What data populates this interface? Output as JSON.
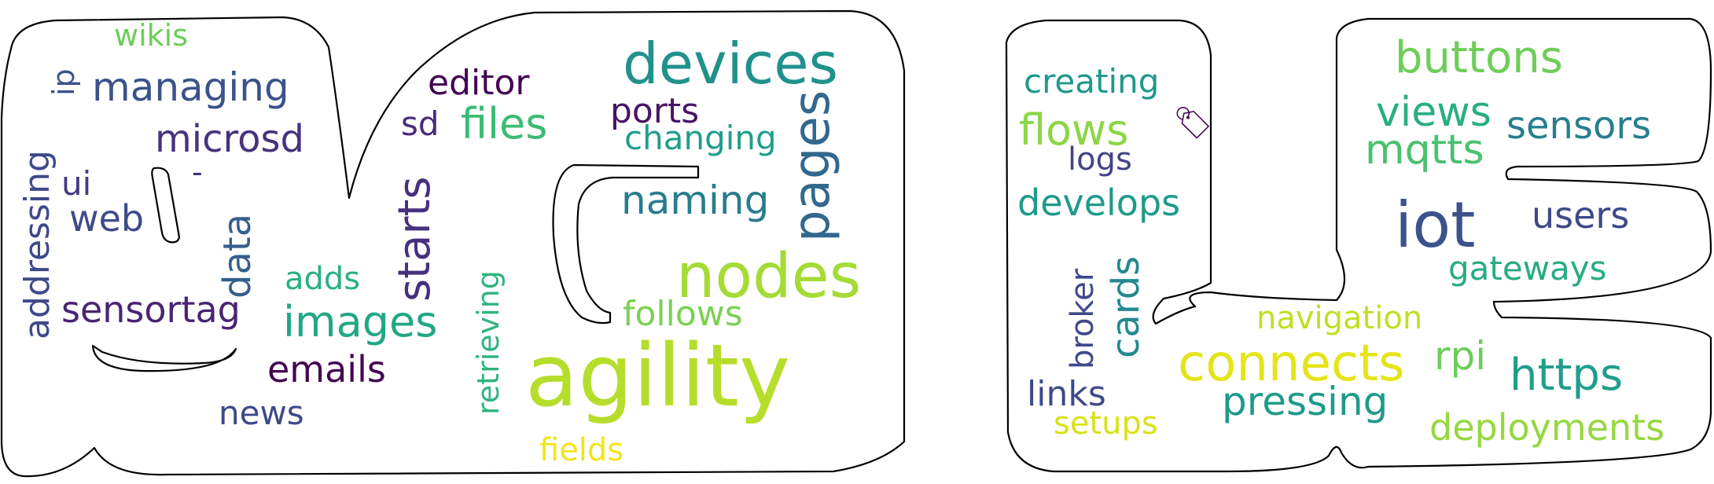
{
  "words": [
    {
      "text": "wikis",
      "color": "#6ccd5a"
    },
    {
      "text": "ip",
      "color": "#3b528b"
    },
    {
      "text": "managing",
      "color": "#3b528b"
    },
    {
      "text": "addressing",
      "color": "#3e4989"
    },
    {
      "text": "microsd",
      "color": "#46327e"
    },
    {
      "text": "ui",
      "color": "#443983"
    },
    {
      "text": "-",
      "color": "#46327e"
    },
    {
      "text": "web",
      "color": "#3e4a89"
    },
    {
      "text": "data",
      "color": "#355f8d"
    },
    {
      "text": "adds",
      "color": "#2ab07f"
    },
    {
      "text": "sensortag",
      "color": "#482475"
    },
    {
      "text": "images",
      "color": "#22a785"
    },
    {
      "text": "emails",
      "color": "#440154"
    },
    {
      "text": "news",
      "color": "#3e4989"
    },
    {
      "text": "editor",
      "color": "#440154"
    },
    {
      "text": "sd",
      "color": "#472c7a"
    },
    {
      "text": "files",
      "color": "#3bbb75"
    },
    {
      "text": "starts",
      "color": "#46307e"
    },
    {
      "text": "retrieving",
      "color": "#2fb47c"
    },
    {
      "text": "devices",
      "color": "#21918c"
    },
    {
      "text": "ports",
      "color": "#481467"
    },
    {
      "text": "changing",
      "color": "#1f9e89"
    },
    {
      "text": "pages",
      "color": "#31688e"
    },
    {
      "text": "naming",
      "color": "#287c8e"
    },
    {
      "text": "nodes",
      "color": "#a5db36"
    },
    {
      "text": "follows",
      "color": "#7ad151"
    },
    {
      "text": "agility",
      "color": "#b5de2b"
    },
    {
      "text": "fields",
      "color": "#f1e51d"
    },
    {
      "text": "creating",
      "color": "#1f988b"
    },
    {
      "text": "flows",
      "color": "#8bd646"
    },
    {
      "text": "🏷",
      "color": "#440154"
    },
    {
      "text": "logs",
      "color": "#414487"
    },
    {
      "text": "develops",
      "color": "#1f9a8a"
    },
    {
      "text": "cards",
      "color": "#23898e"
    },
    {
      "text": "broker",
      "color": "#3e4989"
    },
    {
      "text": "links",
      "color": "#3e4989"
    },
    {
      "text": "setups",
      "color": "#d8e219"
    },
    {
      "text": "buttons",
      "color": "#6ece58"
    },
    {
      "text": "views",
      "color": "#29af7f"
    },
    {
      "text": "sensors",
      "color": "#277f8e"
    },
    {
      "text": "mqtts",
      "color": "#4ac16d"
    },
    {
      "text": "iot",
      "color": "#3b528b"
    },
    {
      "text": "users",
      "color": "#3e4989"
    },
    {
      "text": "gateways",
      "color": "#25ac82"
    },
    {
      "text": "navigation",
      "color": "#c0df25"
    },
    {
      "text": "connects",
      "color": "#e5e419"
    },
    {
      "text": "rpi",
      "color": "#6ccd5a"
    },
    {
      "text": "https",
      "color": "#1f9e89"
    },
    {
      "text": "pressing",
      "color": "#1f9a8a"
    },
    {
      "text": "deployments",
      "color": "#95d840"
    }
  ]
}
